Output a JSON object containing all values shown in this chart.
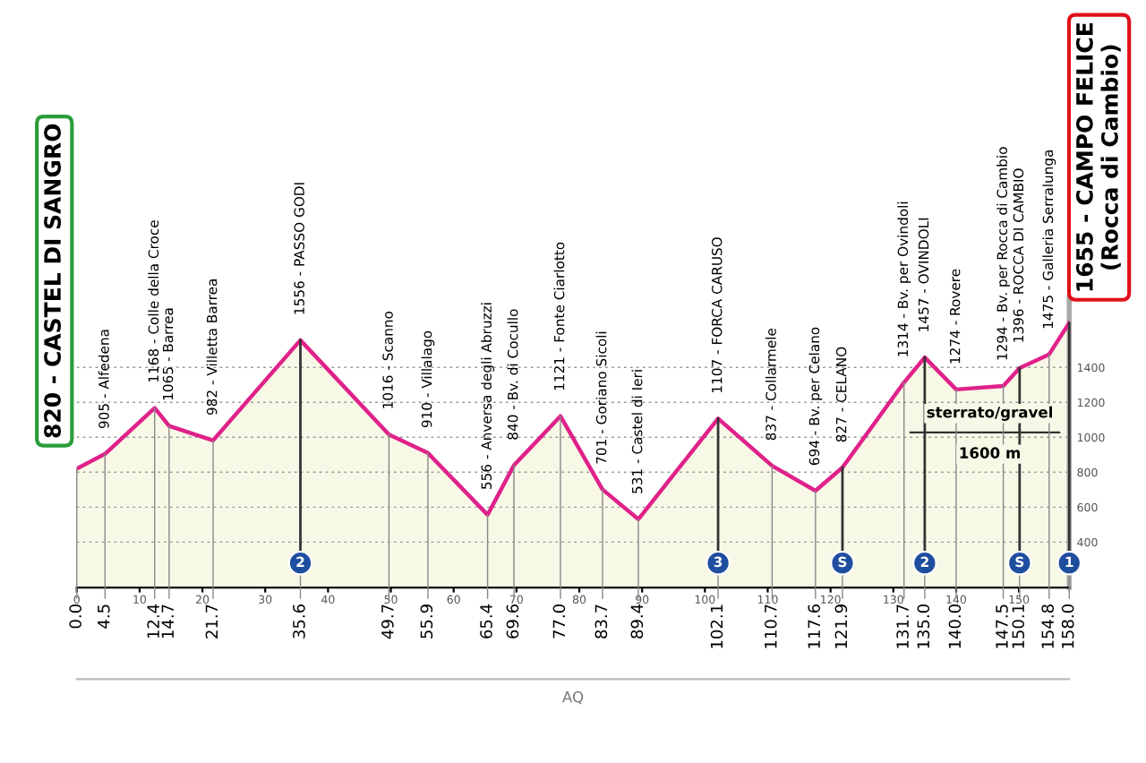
{
  "chart_data": {
    "type": "area",
    "x": [
      0.0,
      4.5,
      12.4,
      14.7,
      21.7,
      35.6,
      49.7,
      55.9,
      65.4,
      69.6,
      77.0,
      83.7,
      89.4,
      102.1,
      110.7,
      117.6,
      121.9,
      131.7,
      135.0,
      140.0,
      147.5,
      150.1,
      154.8,
      158.0
    ],
    "series": [
      {
        "color": "#e0218a",
        "values": [
          820,
          905,
          1168,
          1065,
          982,
          1556,
          1016,
          910,
          556,
          840,
          1121,
          701,
          531,
          1107,
          837,
          694,
          827,
          1314,
          1457,
          1274,
          1294,
          1396,
          1475,
          1655
        ],
        "value_labels": [
          "820 - CASTEL DI SANGRO",
          "905 - Alfedena",
          "1168 - Colle della Croce",
          "1065 - Barrea",
          "982 - Villetta Barrea",
          "1556 - PASSO GODI",
          "1016 - Scanno",
          "910 - Villalago",
          "556 - Anversa degli Abruzzi",
          "840 - Bv. di Cocullo",
          "1121 - Fonte Ciarlotto",
          "701 - Goriano Sicoli",
          "531 - Castel di Ieri",
          "1107 - FORCA CARUSO",
          "837 - Collarmele",
          "694 - Bv. per Celano",
          "827 - CELANO",
          "1314 - Bv. per Ovindoli",
          "1457 - OVINDOLI",
          "1274 - Rovere",
          "1294 - Bv. per Rocca di Cambio",
          "1396 - ROCCA DI CAMBIO",
          "1475 - Galleria Serralunga",
          "1655 - CAMPO FELICE\n(Rocca di Cambio)"
        ]
      }
    ],
    "xlim": [
      0,
      158
    ],
    "xticks": [
      0,
      10,
      20,
      30,
      40,
      50,
      60,
      70,
      80,
      90,
      100,
      110,
      120,
      130,
      140,
      150
    ],
    "ylim": [
      140,
      1800
    ],
    "yticks": [
      400,
      600,
      800,
      1000,
      1200,
      1400
    ],
    "grid": "y",
    "annotations": [
      {
        "text": "0.0",
        "x": 0.0,
        "y": 820
      },
      {
        "text": "4.5",
        "x": 4.5,
        "y": 905
      },
      {
        "text": "12.4",
        "x": 12.4,
        "y": 1168
      },
      {
        "text": "14.7",
        "x": 14.7,
        "y": 1065
      },
      {
        "text": "21.7",
        "x": 21.7,
        "y": 982
      },
      {
        "text": "35.6",
        "x": 35.6,
        "y": 1556
      },
      {
        "text": "49.7",
        "x": 49.7,
        "y": 1016
      },
      {
        "text": "55.9",
        "x": 55.9,
        "y": 910
      },
      {
        "text": "65.4",
        "x": 65.4,
        "y": 556
      },
      {
        "text": "69.6",
        "x": 69.6,
        "y": 840
      },
      {
        "text": "77.0",
        "x": 77.0,
        "y": 1121
      },
      {
        "text": "83.7",
        "x": 83.7,
        "y": 701
      },
      {
        "text": "89.4",
        "x": 89.4,
        "y": 531
      },
      {
        "text": "102.1",
        "x": 102.1,
        "y": 1107
      },
      {
        "text": "110.7",
        "x": 110.7,
        "y": 837
      },
      {
        "text": "117.6",
        "x": 117.6,
        "y": 694
      },
      {
        "text": "121.9",
        "x": 121.9,
        "y": 827
      },
      {
        "text": "131.7",
        "x": 131.7,
        "y": 1314
      },
      {
        "text": "135.0",
        "x": 135.0,
        "y": 1457
      },
      {
        "text": "140.0",
        "x": 140.0,
        "y": 1274
      },
      {
        "text": "147.5",
        "x": 147.5,
        "y": 1294
      },
      {
        "text": "150.1",
        "x": 150.1,
        "y": 1396
      },
      {
        "text": "154.8",
        "x": 154.8,
        "y": 1475
      },
      {
        "text": "158.0",
        "x": 158.0,
        "y": 1655
      },
      {
        "text": "2",
        "x": 35.6,
        "y": 1556
      },
      {
        "text": "3",
        "x": 102.1,
        "y": 1107
      },
      {
        "text": "S",
        "x": 121.9,
        "y": 827
      },
      {
        "text": "2",
        "x": 135.0,
        "y": 1457
      },
      {
        "text": "S",
        "x": 150.1,
        "y": 1396
      },
      {
        "text": "1",
        "x": 158.0,
        "y": 1655
      },
      "AQ",
      "sterrato/gravel",
      "1600 m"
    ]
  }
}
